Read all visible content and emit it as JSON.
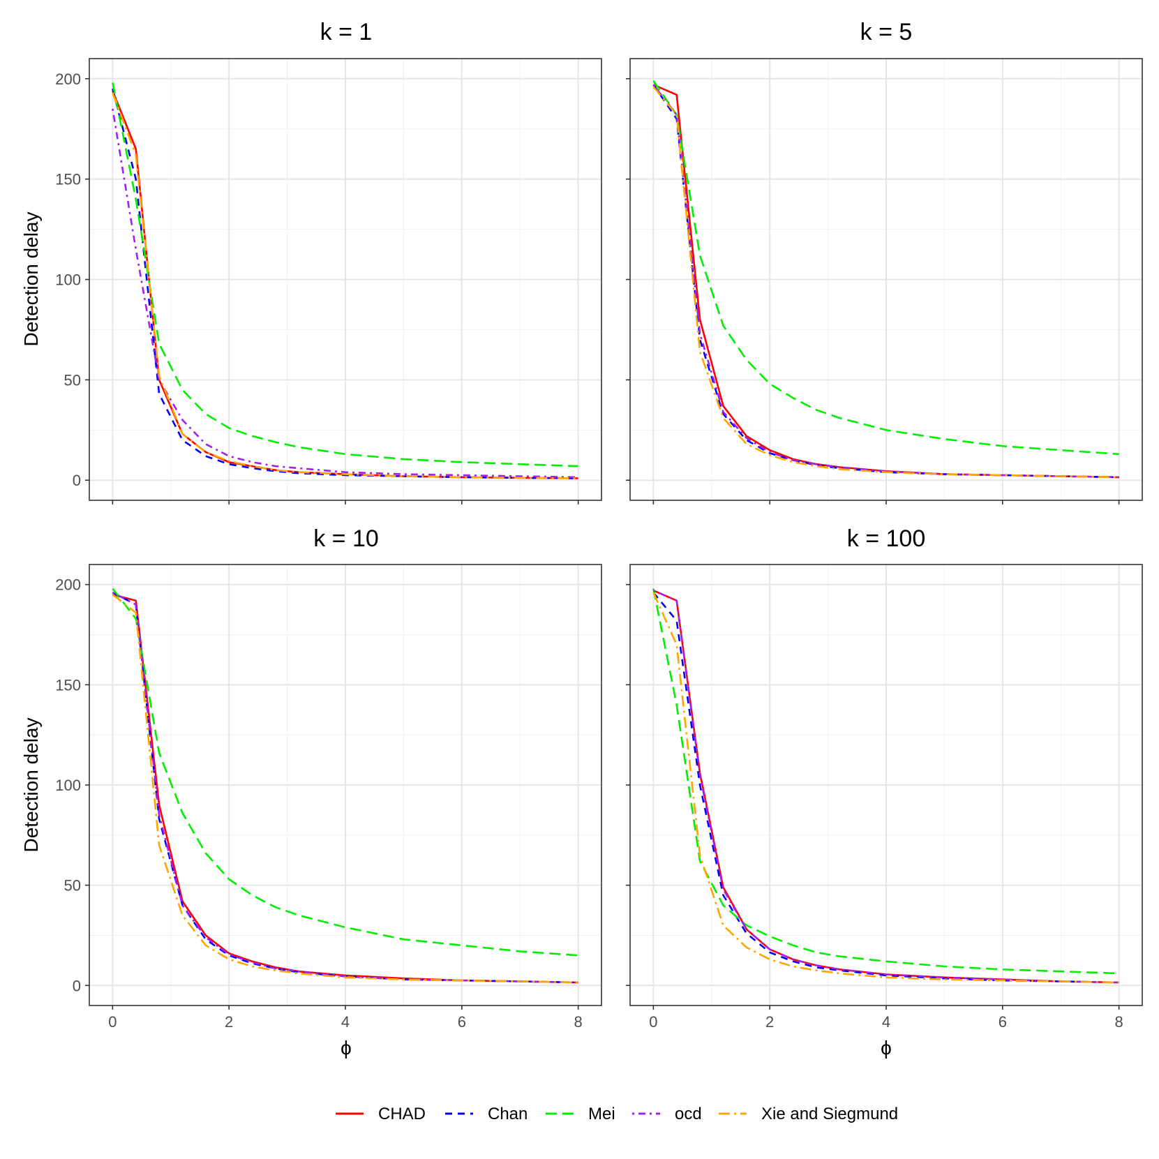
{
  "chart_data": {
    "type": "line",
    "xlabel": "ϕ",
    "ylabel": "Detection delay",
    "xlim": [
      -0.4,
      8.4
    ],
    "ylim": [
      -10,
      210
    ],
    "xticks": [
      0,
      2,
      4,
      6,
      8
    ],
    "yticks": [
      0,
      50,
      100,
      150,
      200
    ],
    "grid": true,
    "legend_position": "bottom",
    "x": [
      0,
      0.4,
      0.8,
      1.2,
      1.6,
      2.0,
      2.4,
      2.8,
      3.2,
      4.0,
      5.0,
      6.0,
      7.0,
      8.0
    ],
    "series_styles": [
      {
        "name": "CHAD",
        "color": "#ff0000",
        "dash": "solid"
      },
      {
        "name": "Chan",
        "color": "#0000ff",
        "dash": "dashed"
      },
      {
        "name": "Mei",
        "color": "#00ee00",
        "dash": "longdash"
      },
      {
        "name": "ocd",
        "color": "#a020f0",
        "dash": "dotdash"
      },
      {
        "name": "Xie and Siegmund",
        "color": "#ffa500",
        "dash": "longdotdash"
      }
    ],
    "panels": [
      {
        "title": "k = 1",
        "series": [
          {
            "name": "CHAD",
            "values": [
              194,
              165,
              50,
              23,
              14,
              9,
              7,
              5,
              4,
              3,
              2,
              1.5,
              1.2,
              1
            ]
          },
          {
            "name": "Chan",
            "values": [
              195,
              150,
              43,
              20,
              12,
              8,
              6,
              4.5,
              3.5,
              2.5,
              2,
              1.5,
              1.2,
              1
            ]
          },
          {
            "name": "Mei",
            "values": [
              198,
              140,
              68,
              45,
              33,
              26,
              22,
              19,
              16.5,
              13,
              10.5,
              9,
              8,
              7
            ]
          },
          {
            "name": "ocd",
            "values": [
              185,
              115,
              50,
              30,
              18,
              12,
              9,
              7,
              6,
              4,
              3,
              2.5,
              2,
              1.5
            ]
          },
          {
            "name": "Xie and Siegmund",
            "values": [
              193,
              162,
              52,
              23,
              14,
              9.5,
              7,
              5,
              4,
              3,
              2,
              1.5,
              1.2,
              1
            ]
          }
        ]
      },
      {
        "title": "k = 5",
        "series": [
          {
            "name": "CHAD",
            "values": [
              197,
              192,
              80,
              37,
              22,
              15,
              10.5,
              8,
              6.5,
              4.5,
              3,
              2.5,
              2,
              1.5
            ]
          },
          {
            "name": "Chan",
            "values": [
              197,
              180,
              70,
              33,
              20,
              13.5,
              10,
              7.5,
              6,
              4,
              3,
              2.5,
              2,
              1.5
            ]
          },
          {
            "name": "Mei",
            "values": [
              199,
              182,
              112,
              77,
              60,
              48,
              41,
              35,
              31,
              25,
              20.5,
              17,
              15,
              13
            ]
          },
          {
            "name": "ocd",
            "values": [
              197,
              182,
              73,
              34,
              21,
              14,
              10,
              8,
              6.5,
              4.5,
              3,
              2.5,
              2,
              1.5
            ]
          },
          {
            "name": "Xie and Siegmund",
            "values": [
              196,
              182,
              64,
              31,
              18,
              12.5,
              9,
              7,
              5.5,
              4,
              3,
              2.5,
              2,
              1.5
            ]
          }
        ]
      },
      {
        "title": "k = 10",
        "series": [
          {
            "name": "CHAD",
            "values": [
              195,
              192,
              90,
              42,
              25,
              16,
              12,
              9,
              7,
              5,
              3.5,
              2.5,
              2,
              1.5
            ]
          },
          {
            "name": "Chan",
            "values": [
              196,
              190,
              83,
              40,
              23,
              15,
              11,
              8.5,
              6.5,
              4.5,
              3,
              2.5,
              2,
              1.5
            ]
          },
          {
            "name": "Mei",
            "values": [
              198,
              183,
              116,
              86,
              66,
              53,
              45,
              39,
              35,
              29,
              23,
              20,
              17,
              15
            ]
          },
          {
            "name": "ocd",
            "values": [
              196,
              190,
              85,
              40,
              24,
              15.5,
              11.5,
              8.5,
              7,
              4.5,
              3,
              2.5,
              2,
              1.5
            ]
          },
          {
            "name": "Xie and Siegmund",
            "values": [
              195,
              186,
              70,
              35,
              20,
              13,
              9.5,
              7.5,
              6,
              4,
              3,
              2.5,
              2,
              1.5
            ]
          }
        ]
      },
      {
        "title": "k = 100",
        "series": [
          {
            "name": "CHAD",
            "values": [
              197,
              192,
              106,
              49,
              28,
              18,
              13,
              10,
              8,
              5.5,
              4,
              3,
              2,
              1.5
            ]
          },
          {
            "name": "Chan",
            "values": [
              196,
              182,
              100,
              45,
              26,
              16.5,
              12,
              9,
              7.5,
              5,
              3.5,
              2.5,
              2,
              1.5
            ]
          },
          {
            "name": "Mei",
            "values": [
              198,
              140,
              62,
              40,
              30,
              24.5,
              20,
              16.5,
              14.5,
              12,
              9.5,
              8,
              7,
              6
            ]
          },
          {
            "name": "ocd",
            "values": [
              197,
              192,
              105,
              48,
              28,
              18,
              13,
              10,
              8,
              5.5,
              4,
              3,
              2,
              1.5
            ]
          },
          {
            "name": "Xie and Siegmund",
            "values": [
              196,
              170,
              65,
              30,
              19,
              13,
              9.5,
              7.5,
              6,
              4,
              3,
              2.5,
              2,
              1.5
            ]
          }
        ]
      }
    ]
  }
}
